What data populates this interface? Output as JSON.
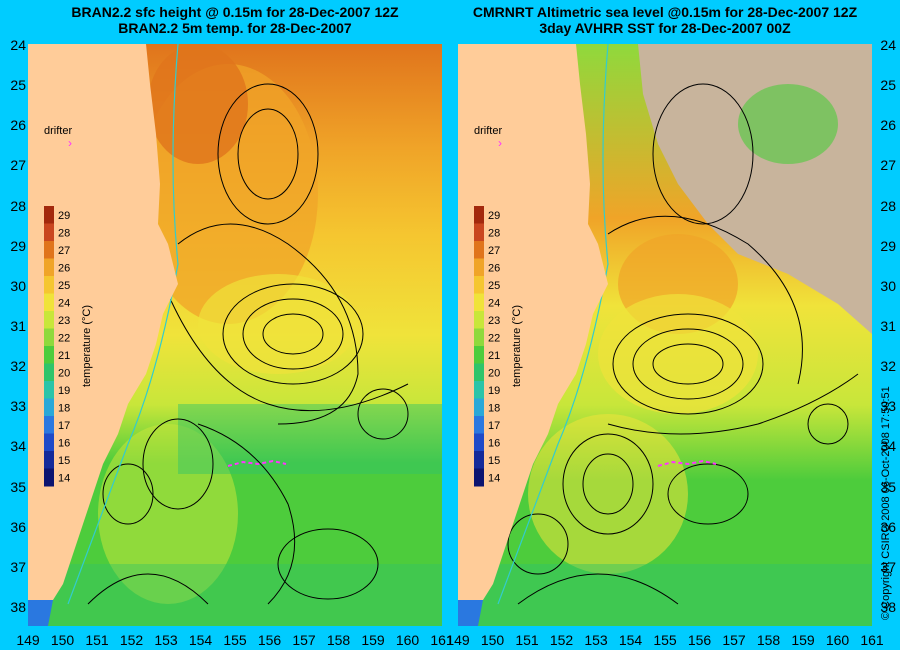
{
  "left_panel": {
    "title_line1": "BRAN2.2 sfc height @ 0.15m for 28-Dec-2007 12Z",
    "title_line2": "BRAN2.2 5m temp. for 28-Dec-2007",
    "drifter_label": "drifter"
  },
  "right_panel": {
    "title_line1": "CMRNRT Altimetric sea level  @0.15m  for 28-Dec-2007 12Z",
    "title_line2": "3day AVHRR SST for 28-Dec-2007 00Z",
    "drifter_label": "drifter",
    "copyright": "© Copyright CSIRO 2008   06-Oct-2008 17:50:51"
  },
  "colorbar": {
    "label": "temperature (°C)",
    "ticks": [
      "29",
      "28",
      "27",
      "26",
      "25",
      "24",
      "23",
      "22",
      "21",
      "20",
      "19",
      "18",
      "17",
      "16",
      "15",
      "14"
    ],
    "colors": [
      "#a3290d",
      "#c9461f",
      "#e0741c",
      "#f0a428",
      "#f5c630",
      "#f0e33a",
      "#c8e63a",
      "#8fd93c",
      "#4dcc3c",
      "#2fc46a",
      "#2bc4a8",
      "#2aa8d8",
      "#2a78e0",
      "#1e4ac8",
      "#142a9a",
      "#0c1470"
    ]
  },
  "map": {
    "x_ticks": [
      "149",
      "150",
      "151",
      "152",
      "153",
      "154",
      "155",
      "156",
      "157",
      "158",
      "159",
      "160",
      "161"
    ],
    "y_ticks": [
      "24",
      "25",
      "26",
      "27",
      "28",
      "29",
      "30",
      "31",
      "32",
      "33",
      "34",
      "35",
      "36",
      "37",
      "38"
    ],
    "land_color": "#ffcc99",
    "cloud_color": "#c8b49c",
    "contour_color": "#000000",
    "isobath_color": "#33cccc",
    "drifter_color": "#ff33ff"
  }
}
